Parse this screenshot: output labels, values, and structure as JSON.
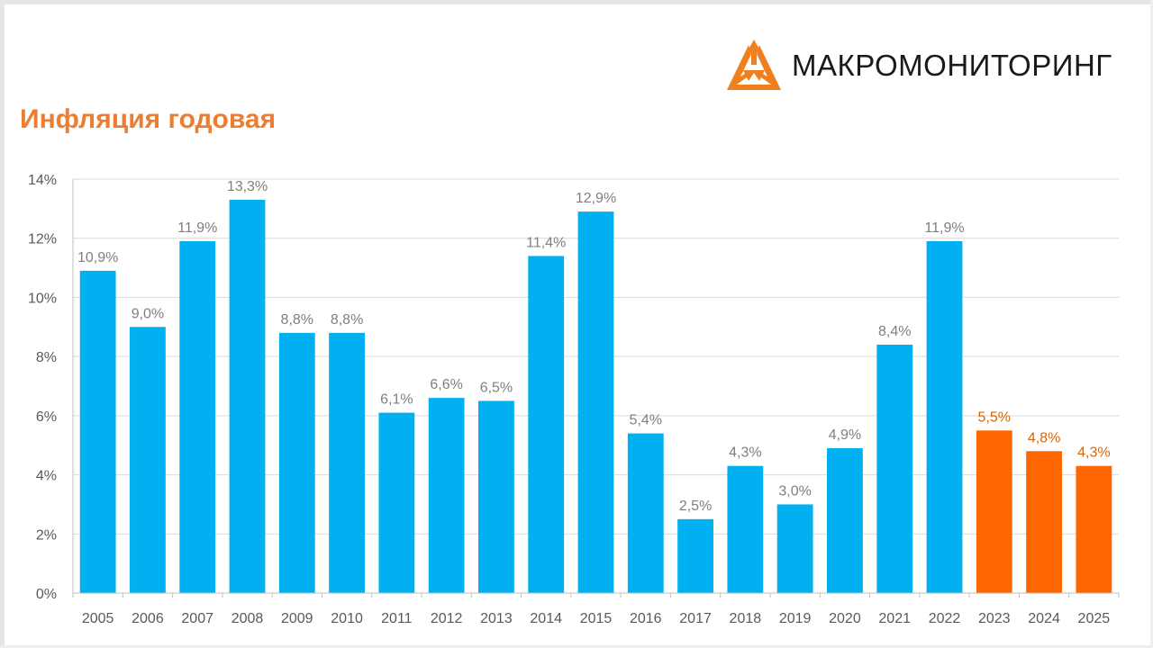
{
  "brand": {
    "name": "МАКРОМОНИТОРИНГ",
    "logo_color": "#f07f1d"
  },
  "title": "Инфляция годовая",
  "colors": {
    "actual": "#00b0f0",
    "forecast": "#ff6600",
    "actual_label": "#7f7f7f",
    "forecast_label": "#d96500",
    "grid": "#d9d9d9",
    "axis": "#bfbfbf"
  },
  "chart_data": {
    "type": "bar",
    "categories": [
      "2005",
      "2006",
      "2007",
      "2008",
      "2009",
      "2010",
      "2011",
      "2012",
      "2013",
      "2014",
      "2015",
      "2016",
      "2017",
      "2018",
      "2019",
      "2020",
      "2021",
      "2022",
      "2023",
      "2024",
      "2025"
    ],
    "values": [
      10.9,
      9.0,
      11.9,
      13.3,
      8.8,
      8.8,
      6.1,
      6.6,
      6.5,
      11.4,
      12.9,
      5.4,
      2.5,
      4.3,
      3.0,
      4.9,
      8.4,
      11.9,
      5.5,
      4.8,
      4.3
    ],
    "value_labels": [
      "10,9%",
      "9,0%",
      "11,9%",
      "13,3%",
      "8,8%",
      "8,8%",
      "6,1%",
      "6,6%",
      "6,5%",
      "11,4%",
      "12,9%",
      "5,4%",
      "2,5%",
      "4,3%",
      "3,0%",
      "4,9%",
      "8,4%",
      "11,9%",
      "5,5%",
      "4,8%",
      "4,3%"
    ],
    "highlighted": [
      false,
      false,
      false,
      false,
      false,
      false,
      false,
      false,
      false,
      false,
      false,
      false,
      false,
      false,
      false,
      false,
      false,
      false,
      true,
      true,
      true
    ],
    "yticks": [
      0,
      2,
      4,
      6,
      8,
      10,
      12,
      14
    ],
    "ytick_labels": [
      "0%",
      "2%",
      "4%",
      "6%",
      "8%",
      "10%",
      "12%",
      "14%"
    ],
    "ylim": [
      0,
      14
    ],
    "grid": true,
    "legend": false,
    "xlabel": "",
    "ylabel": ""
  }
}
